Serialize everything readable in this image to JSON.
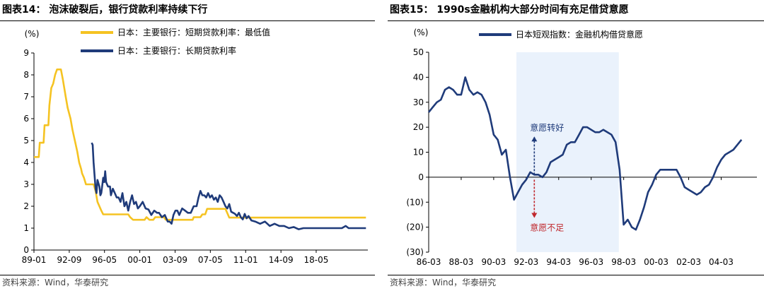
{
  "left": {
    "title": "图表14：  泡沫破裂后，银行贷款利率持续下行",
    "source": "资料来源：Wind，华泰研究",
    "chart_data": {
      "type": "line",
      "ylabel": "(%)",
      "ylim": [
        0,
        9
      ],
      "yticks": [
        0,
        1,
        2,
        3,
        4,
        5,
        6,
        7,
        8,
        9
      ],
      "xlim": [
        1989.0,
        2023.7
      ],
      "xticks": [
        {
          "label": "89-01",
          "x": 1989.0
        },
        {
          "label": "92-09",
          "x": 1992.67
        },
        {
          "label": "96-05",
          "x": 1996.33
        },
        {
          "label": "00-01",
          "x": 2000.0
        },
        {
          "label": "03-09",
          "x": 2003.67
        },
        {
          "label": "07-05",
          "x": 2007.33
        },
        {
          "label": "11-01",
          "x": 2011.0
        },
        {
          "label": "14-09",
          "x": 2014.67
        },
        {
          "label": "18-05",
          "x": 2018.33
        }
      ],
      "legend_position": "top-left",
      "series": [
        {
          "name": "日本：主要银行：短期贷款利率：最低值",
          "color": "#F5C322",
          "points": [
            [
              1989.0,
              4.25
            ],
            [
              1989.5,
              4.25
            ],
            [
              1989.6,
              4.9
            ],
            [
              1990.0,
              4.9
            ],
            [
              1990.1,
              5.7
            ],
            [
              1990.5,
              5.7
            ],
            [
              1990.6,
              6.6
            ],
            [
              1990.8,
              7.4
            ],
            [
              1991.0,
              7.6
            ],
            [
              1991.2,
              8.0
            ],
            [
              1991.4,
              8.25
            ],
            [
              1991.8,
              8.25
            ],
            [
              1992.0,
              7.8
            ],
            [
              1992.3,
              7.0
            ],
            [
              1992.5,
              6.5
            ],
            [
              1992.8,
              6.0
            ],
            [
              1993.0,
              5.5
            ],
            [
              1993.3,
              4.9
            ],
            [
              1993.5,
              4.5
            ],
            [
              1993.7,
              4.0
            ],
            [
              1993.9,
              3.7
            ],
            [
              1994.0,
              3.5
            ],
            [
              1994.2,
              3.3
            ],
            [
              1994.4,
              3.0
            ],
            [
              1995.2,
              3.0
            ],
            [
              1995.4,
              2.7
            ],
            [
              1995.6,
              2.2
            ],
            [
              1995.8,
              2.0
            ],
            [
              1996.0,
              1.8
            ],
            [
              1996.2,
              1.63
            ],
            [
              1998.8,
              1.63
            ],
            [
              1999.0,
              1.5
            ],
            [
              1999.3,
              1.38
            ],
            [
              2000.5,
              1.38
            ],
            [
              2000.7,
              1.5
            ],
            [
              2001.0,
              1.38
            ],
            [
              2001.4,
              1.38
            ],
            [
              2001.6,
              1.5
            ],
            [
              2002.5,
              1.5
            ],
            [
              2002.7,
              1.38
            ],
            [
              2005.5,
              1.38
            ],
            [
              2005.6,
              1.5
            ],
            [
              2006.3,
              1.5
            ],
            [
              2006.5,
              1.63
            ],
            [
              2006.8,
              1.63
            ],
            [
              2007.0,
              1.88
            ],
            [
              2008.9,
              1.88
            ],
            [
              2009.1,
              1.68
            ],
            [
              2009.3,
              1.48
            ],
            [
              2023.5,
              1.48
            ]
          ]
        },
        {
          "name": "日本：主要银行：长期贷款利率",
          "color": "#1F3B7A",
          "points": [
            [
              1995.0,
              4.9
            ],
            [
              1995.1,
              4.8
            ],
            [
              1995.2,
              4.0
            ],
            [
              1995.3,
              3.4
            ],
            [
              1995.4,
              2.8
            ],
            [
              1995.5,
              2.6
            ],
            [
              1995.6,
              3.2
            ],
            [
              1995.8,
              2.9
            ],
            [
              1995.9,
              2.5
            ],
            [
              1996.0,
              2.6
            ],
            [
              1996.2,
              3.3
            ],
            [
              1996.3,
              3.1
            ],
            [
              1996.4,
              3.6
            ],
            [
              1996.5,
              3.1
            ],
            [
              1996.7,
              2.9
            ],
            [
              1996.9,
              2.9
            ],
            [
              1997.0,
              2.5
            ],
            [
              1997.2,
              2.8
            ],
            [
              1997.4,
              2.6
            ],
            [
              1997.6,
              2.4
            ],
            [
              1997.8,
              2.4
            ],
            [
              1998.0,
              2.2
            ],
            [
              1998.2,
              2.6
            ],
            [
              1998.4,
              2.0
            ],
            [
              1998.6,
              2.2
            ],
            [
              1998.8,
              1.8
            ],
            [
              1999.0,
              2.2
            ],
            [
              1999.2,
              2.5
            ],
            [
              1999.4,
              2.1
            ],
            [
              1999.6,
              2.2
            ],
            [
              1999.8,
              1.9
            ],
            [
              2000.0,
              2.0
            ],
            [
              2000.3,
              2.2
            ],
            [
              2000.6,
              1.9
            ],
            [
              2000.9,
              1.85
            ],
            [
              2001.2,
              1.6
            ],
            [
              2001.5,
              1.8
            ],
            [
              2001.8,
              1.7
            ],
            [
              2002.0,
              1.7
            ],
            [
              2002.3,
              1.5
            ],
            [
              2002.6,
              1.6
            ],
            [
              2002.9,
              1.3
            ],
            [
              2003.1,
              1.3
            ],
            [
              2003.3,
              1.2
            ],
            [
              2003.5,
              1.6
            ],
            [
              2003.7,
              1.8
            ],
            [
              2003.9,
              1.8
            ],
            [
              2004.1,
              1.6
            ],
            [
              2004.4,
              1.9
            ],
            [
              2004.7,
              1.8
            ],
            [
              2005.0,
              1.7
            ],
            [
              2005.3,
              1.7
            ],
            [
              2005.6,
              2.0
            ],
            [
              2005.9,
              2.0
            ],
            [
              2006.1,
              2.4
            ],
            [
              2006.3,
              2.7
            ],
            [
              2006.5,
              2.5
            ],
            [
              2006.7,
              2.5
            ],
            [
              2006.9,
              2.4
            ],
            [
              2007.1,
              2.6
            ],
            [
              2007.3,
              2.4
            ],
            [
              2007.5,
              2.5
            ],
            [
              2007.7,
              2.3
            ],
            [
              2007.9,
              2.4
            ],
            [
              2008.1,
              2.2
            ],
            [
              2008.3,
              2.5
            ],
            [
              2008.5,
              2.4
            ],
            [
              2008.7,
              2.2
            ],
            [
              2008.9,
              2.0
            ],
            [
              2009.1,
              1.9
            ],
            [
              2009.3,
              2.1
            ],
            [
              2009.5,
              1.75
            ],
            [
              2009.7,
              1.7
            ],
            [
              2009.9,
              1.65
            ],
            [
              2010.1,
              1.55
            ],
            [
              2010.3,
              1.7
            ],
            [
              2010.5,
              1.5
            ],
            [
              2010.7,
              1.4
            ],
            [
              2010.9,
              1.65
            ],
            [
              2011.1,
              1.45
            ],
            [
              2011.3,
              1.55
            ],
            [
              2011.6,
              1.35
            ],
            [
              2012.0,
              1.3
            ],
            [
              2012.5,
              1.2
            ],
            [
              2013.0,
              1.3
            ],
            [
              2013.5,
              1.1
            ],
            [
              2014.0,
              1.2
            ],
            [
              2014.5,
              1.1
            ],
            [
              2015.0,
              1.1
            ],
            [
              2015.5,
              1.0
            ],
            [
              2016.0,
              1.05
            ],
            [
              2016.5,
              0.95
            ],
            [
              2017.0,
              1.0
            ],
            [
              2018.0,
              1.0
            ],
            [
              2019.0,
              1.0
            ],
            [
              2020.0,
              1.0
            ],
            [
              2021.0,
              1.0
            ],
            [
              2021.4,
              1.1
            ],
            [
              2021.7,
              1.0
            ],
            [
              2023.5,
              1.0
            ]
          ]
        }
      ]
    }
  },
  "right": {
    "title": "图表15：  1990s金融机构大部分时间有充足借贷意愿",
    "source": "资料来源：Wind，华泰研究",
    "chart_data": {
      "type": "line",
      "ylabel": "(%)",
      "ylim": [
        -30,
        50
      ],
      "yticks": [
        50,
        40,
        30,
        20,
        10,
        0,
        -10,
        -20,
        -30
      ],
      "ytick_labels": [
        "50",
        "40",
        "30",
        "20",
        "10",
        "0",
        "(10)",
        "(20)",
        "(30)"
      ],
      "xlim": [
        1986.0,
        2006.2
      ],
      "xticks": [
        {
          "label": "86-03",
          "x": 1986.0
        },
        {
          "label": "88-03",
          "x": 1988.0
        },
        {
          "label": "90-03",
          "x": 1990.0
        },
        {
          "label": "92-03",
          "x": 1992.0
        },
        {
          "label": "94-03",
          "x": 1994.0
        },
        {
          "label": "96-03",
          "x": 1996.0
        },
        {
          "label": "98-03",
          "x": 1998.0
        },
        {
          "label": "00-03",
          "x": 2000.0
        },
        {
          "label": "02-03",
          "x": 2002.0
        },
        {
          "label": "04-03",
          "x": 2004.0
        }
      ],
      "legend_position": "top-left",
      "shaded_range": [
        1991.4,
        1997.7
      ],
      "annotations": [
        {
          "text": "意愿转好",
          "color": "#1F3B7A",
          "x": 1992.5,
          "y": 20,
          "arrow": "up",
          "arrow_from": 1,
          "arrow_to": 16
        },
        {
          "text": "意愿不足",
          "color": "#C0282D",
          "x": 1992.5,
          "y": -20,
          "arrow": "down",
          "arrow_from": -1,
          "arrow_to": -16
        }
      ],
      "series": [
        {
          "name": "日本短观指数：金融机构借贷意愿",
          "color": "#1F3B7A",
          "points": [
            [
              1986.0,
              26
            ],
            [
              1986.25,
              28
            ],
            [
              1986.5,
              30
            ],
            [
              1986.75,
              31
            ],
            [
              1987.0,
              35
            ],
            [
              1987.25,
              36
            ],
            [
              1987.5,
              35
            ],
            [
              1987.75,
              33
            ],
            [
              1988.0,
              33
            ],
            [
              1988.25,
              40
            ],
            [
              1988.5,
              35
            ],
            [
              1988.75,
              33
            ],
            [
              1989.0,
              34
            ],
            [
              1989.25,
              33
            ],
            [
              1989.5,
              30
            ],
            [
              1989.75,
              25
            ],
            [
              1990.0,
              17
            ],
            [
              1990.25,
              15
            ],
            [
              1990.5,
              9
            ],
            [
              1990.75,
              11
            ],
            [
              1991.0,
              0
            ],
            [
              1991.25,
              -9
            ],
            [
              1991.5,
              -6
            ],
            [
              1991.75,
              -3
            ],
            [
              1992.0,
              -1
            ],
            [
              1992.25,
              2
            ],
            [
              1992.5,
              1
            ],
            [
              1992.75,
              1
            ],
            [
              1993.0,
              0
            ],
            [
              1993.25,
              2
            ],
            [
              1993.5,
              6
            ],
            [
              1993.75,
              7
            ],
            [
              1994.0,
              8
            ],
            [
              1994.25,
              9
            ],
            [
              1994.5,
              13
            ],
            [
              1994.75,
              14
            ],
            [
              1995.0,
              14
            ],
            [
              1995.25,
              17
            ],
            [
              1995.5,
              20
            ],
            [
              1995.75,
              20
            ],
            [
              1996.0,
              19
            ],
            [
              1996.25,
              18
            ],
            [
              1996.5,
              18
            ],
            [
              1996.75,
              19
            ],
            [
              1997.0,
              18
            ],
            [
              1997.25,
              17
            ],
            [
              1997.5,
              14
            ],
            [
              1997.75,
              3
            ],
            [
              1998.0,
              -19
            ],
            [
              1998.25,
              -17
            ],
            [
              1998.5,
              -20
            ],
            [
              1998.75,
              -21
            ],
            [
              1999.0,
              -17
            ],
            [
              1999.25,
              -12
            ],
            [
              1999.5,
              -6
            ],
            [
              1999.75,
              -3
            ],
            [
              2000.0,
              1
            ],
            [
              2000.25,
              3
            ],
            [
              2000.5,
              3
            ],
            [
              2000.75,
              3
            ],
            [
              2001.0,
              3
            ],
            [
              2001.25,
              3
            ],
            [
              2001.5,
              0
            ],
            [
              2001.75,
              -4
            ],
            [
              2002.0,
              -5
            ],
            [
              2002.25,
              -6
            ],
            [
              2002.5,
              -7
            ],
            [
              2002.75,
              -6
            ],
            [
              2003.0,
              -4
            ],
            [
              2003.25,
              -3
            ],
            [
              2003.5,
              0
            ],
            [
              2003.75,
              4
            ],
            [
              2004.0,
              7
            ],
            [
              2004.25,
              9
            ],
            [
              2004.5,
              10
            ],
            [
              2004.75,
              11
            ],
            [
              2005.0,
              13
            ],
            [
              2005.25,
              15
            ]
          ]
        }
      ]
    }
  }
}
